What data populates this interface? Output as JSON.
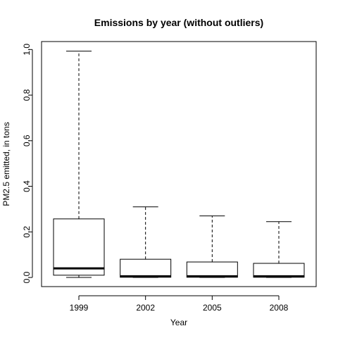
{
  "chart_data": {
    "type": "boxplot",
    "title": "Emissions by year (without outliers)",
    "xlabel": "Year",
    "ylabel": "PM2.5 emitted, in tons",
    "categories": [
      "1999",
      "2002",
      "2005",
      "2008"
    ],
    "ylim": [
      -0.04,
      1.035
    ],
    "yticks": [
      0.0,
      0.2,
      0.4,
      0.6,
      0.8,
      1.0
    ],
    "ytick_labels": [
      "0.0",
      "0.2",
      "0.4",
      "0.6",
      "0.8",
      "1.0"
    ],
    "boxes": [
      {
        "category": "1999",
        "whisker_low": 0.0,
        "q1": 0.01,
        "median": 0.04,
        "q3": 0.257,
        "whisker_high": 0.993
      },
      {
        "category": "2002",
        "whisker_low": 0.0,
        "q1": 0.001,
        "median": 0.005,
        "q3": 0.08,
        "whisker_high": 0.31
      },
      {
        "category": "2005",
        "whisker_low": 0.0,
        "q1": 0.001,
        "median": 0.005,
        "q3": 0.068,
        "whisker_high": 0.27
      },
      {
        "category": "2008",
        "whisker_low": 0.0,
        "q1": 0.001,
        "median": 0.005,
        "q3": 0.062,
        "whisker_high": 0.245
      }
    ]
  }
}
